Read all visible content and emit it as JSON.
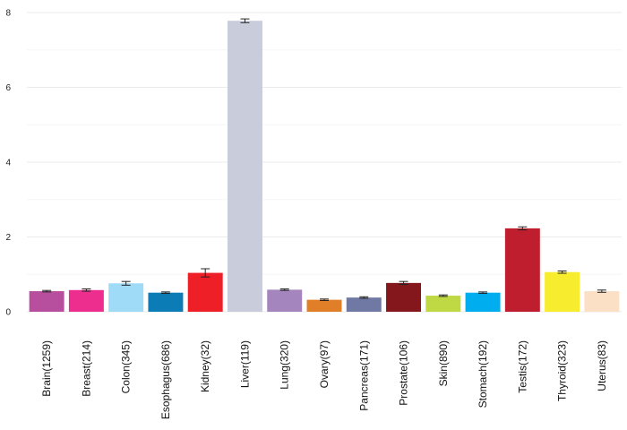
{
  "chart_data": {
    "type": "bar",
    "title": "",
    "xlabel": "",
    "ylabel": "",
    "ylim": [
      0,
      8
    ],
    "yticks": [
      "0",
      "2",
      "4",
      "6",
      "8"
    ],
    "grid": true,
    "categories": [
      "Brain(1259)",
      "Breast(214)",
      "Colon(345)",
      "Esophagus(686)",
      "Kidney(32)",
      "Liver(119)",
      "Lung(320)",
      "Ovary(97)",
      "Pancreas(171)",
      "Prostate(106)",
      "Skin(890)",
      "Stomach(192)",
      "Testis(172)",
      "Thyroid(323)",
      "Uterus(83)"
    ],
    "values": [
      0.55,
      0.58,
      0.76,
      0.51,
      1.04,
      7.78,
      0.59,
      0.32,
      0.38,
      0.77,
      0.43,
      0.51,
      2.23,
      1.06,
      0.55
    ],
    "errors": [
      0.02,
      0.03,
      0.05,
      0.02,
      0.11,
      0.05,
      0.02,
      0.02,
      0.02,
      0.04,
      0.02,
      0.02,
      0.04,
      0.03,
      0.03
    ],
    "colors": [
      "#b84f9e",
      "#ee2e8f",
      "#9fdaf7",
      "#0b7cb5",
      "#ee1f27",
      "#c9ccdb",
      "#a585bd",
      "#e07f28",
      "#6f79a3",
      "#84171b",
      "#bfd944",
      "#00adef",
      "#be1e2d",
      "#f7ec2d",
      "#fce0c6"
    ]
  }
}
